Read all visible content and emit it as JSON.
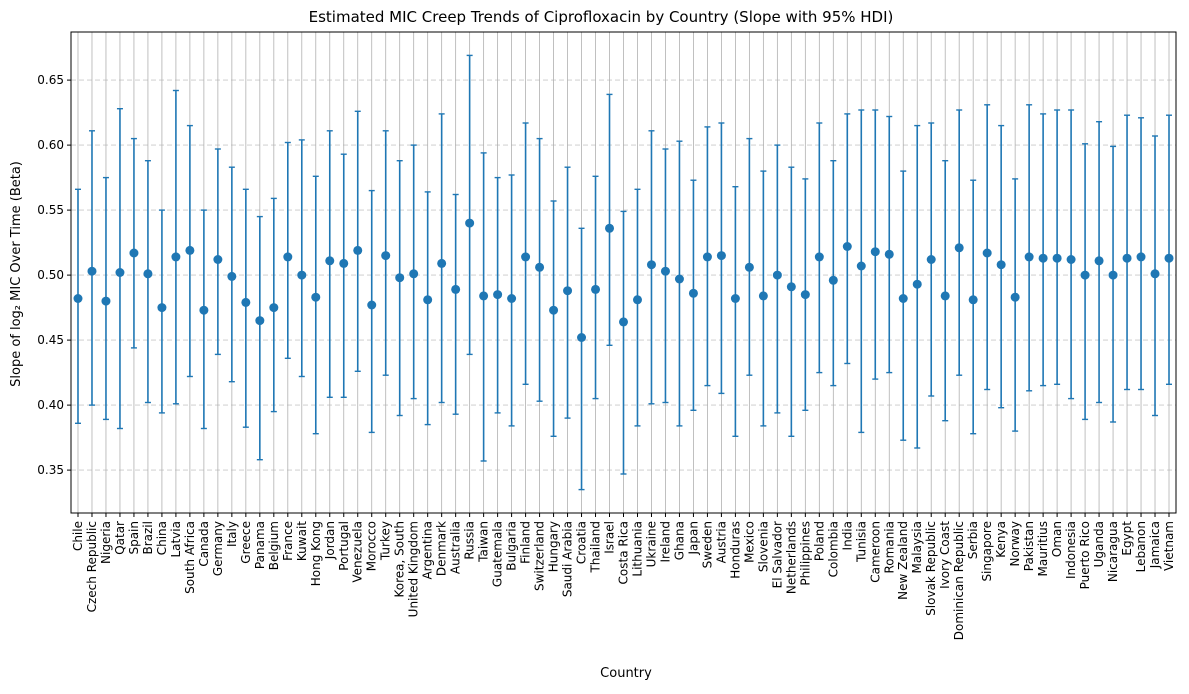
{
  "chart_data": {
    "type": "scatter",
    "title": "Estimated MIC Creep Trends of Ciprofloxacin by Country (Slope with 95% HDI)",
    "xlabel": "Country",
    "ylabel": "Slope of log₂ MIC Over Time (Beta)",
    "ylim": [
      0.317,
      0.687
    ],
    "yticks": [
      "0.35",
      "0.40",
      "0.45",
      "0.50",
      "0.55",
      "0.60",
      "0.65"
    ],
    "ytick_values": [
      0.35,
      0.4,
      0.45,
      0.5,
      0.55,
      0.6,
      0.65
    ],
    "grid": "x solid light gray, y dashed light gray",
    "legend": "none",
    "marker_color": "#1f77b4",
    "categories": [
      "Chile",
      "Czech Republic",
      "Nigeria",
      "Qatar",
      "Spain",
      "Brazil",
      "China",
      "Latvia",
      "South Africa",
      "Canada",
      "Germany",
      "Italy",
      "Greece",
      "Panama",
      "Belgium",
      "France",
      "Kuwait",
      "Hong Kong",
      "Jordan",
      "Portugal",
      "Venezuela",
      "Morocco",
      "Turkey",
      "Korea, South",
      "United Kingdom",
      "Argentina",
      "Denmark",
      "Australia",
      "Russia",
      "Taiwan",
      "Guatemala",
      "Bulgaria",
      "Finland",
      "Switzerland",
      "Hungary",
      "Saudi Arabia",
      "Croatia",
      "Thailand",
      "Israel",
      "Costa Rica",
      "Lithuania",
      "Ukraine",
      "Ireland",
      "Ghana",
      "Japan",
      "Sweden",
      "Austria",
      "Honduras",
      "Mexico",
      "Slovenia",
      "El Salvador",
      "Netherlands",
      "Philippines",
      "Poland",
      "Colombia",
      "India",
      "Tunisia",
      "Cameroon",
      "Romania",
      "New Zealand",
      "Malaysia",
      "Slovak Republic",
      "Ivory Coast",
      "Dominican Republic",
      "Serbia",
      "Singapore",
      "Kenya",
      "Norway",
      "Pakistan",
      "Mauritius",
      "Oman",
      "Indonesia",
      "Puerto Rico",
      "Uganda",
      "Nicaragua",
      "Egypt",
      "Lebanon",
      "Jamaica",
      "Vietnam"
    ],
    "mean": [
      0.482,
      0.503,
      0.48,
      0.502,
      0.517,
      0.501,
      0.475,
      0.514,
      0.519,
      0.473,
      0.512,
      0.499,
      0.479,
      0.465,
      0.475,
      0.514,
      0.5,
      0.483,
      0.511,
      0.509,
      0.519,
      0.477,
      0.515,
      0.498,
      0.501,
      0.481,
      0.509,
      0.489,
      0.54,
      0.484,
      0.485,
      0.482,
      0.514,
      0.506,
      0.473,
      0.488,
      0.452,
      0.489,
      0.536,
      0.464,
      0.481,
      0.508,
      0.503,
      0.497,
      0.486,
      0.514,
      0.515,
      0.482,
      0.506,
      0.484,
      0.5,
      0.491,
      0.485,
      0.514,
      0.496,
      0.522,
      0.507,
      0.518,
      0.516,
      0.482,
      0.493,
      0.512,
      0.484,
      0.521,
      0.481,
      0.517,
      0.508,
      0.483,
      0.514,
      0.513,
      0.513,
      0.512,
      0.5,
      0.511,
      0.5,
      0.513,
      0.514,
      0.501,
      0.513
    ],
    "hdi_lower": [
      0.386,
      0.4,
      0.389,
      0.382,
      0.444,
      0.402,
      0.394,
      0.401,
      0.422,
      0.382,
      0.439,
      0.418,
      0.383,
      0.358,
      0.395,
      0.436,
      0.422,
      0.378,
      0.406,
      0.406,
      0.426,
      0.379,
      0.423,
      0.392,
      0.405,
      0.385,
      0.402,
      0.393,
      0.439,
      0.357,
      0.394,
      0.384,
      0.416,
      0.403,
      0.376,
      0.39,
      0.335,
      0.405,
      0.446,
      0.347,
      0.384,
      0.401,
      0.402,
      0.384,
      0.396,
      0.415,
      0.409,
      0.376,
      0.423,
      0.384,
      0.394,
      0.376,
      0.396,
      0.425,
      0.415,
      0.432,
      0.379,
      0.42,
      0.425,
      0.373,
      0.367,
      0.407,
      0.388,
      0.423,
      0.378,
      0.412,
      0.398,
      0.38,
      0.411,
      0.415,
      0.416,
      0.405,
      0.389,
      0.402,
      0.387,
      0.412,
      0.412,
      0.392,
      0.416
    ],
    "hdi_upper": [
      0.566,
      0.611,
      0.575,
      0.628,
      0.605,
      0.588,
      0.55,
      0.642,
      0.615,
      0.55,
      0.597,
      0.583,
      0.566,
      0.545,
      0.559,
      0.602,
      0.604,
      0.576,
      0.611,
      0.593,
      0.626,
      0.565,
      0.611,
      0.588,
      0.6,
      0.564,
      0.624,
      0.562,
      0.669,
      0.594,
      0.575,
      0.577,
      0.617,
      0.605,
      0.557,
      0.583,
      0.536,
      0.576,
      0.639,
      0.549,
      0.566,
      0.611,
      0.597,
      0.603,
      0.573,
      0.614,
      0.617,
      0.568,
      0.605,
      0.58,
      0.6,
      0.583,
      0.574,
      0.617,
      0.588,
      0.624,
      0.627,
      0.627,
      0.622,
      0.58,
      0.615,
      0.617,
      0.588,
      0.627,
      0.573,
      0.631,
      0.615,
      0.574,
      0.631,
      0.624,
      0.627,
      0.627,
      0.601,
      0.618,
      0.599,
      0.623,
      0.621,
      0.607,
      0.623
    ]
  }
}
